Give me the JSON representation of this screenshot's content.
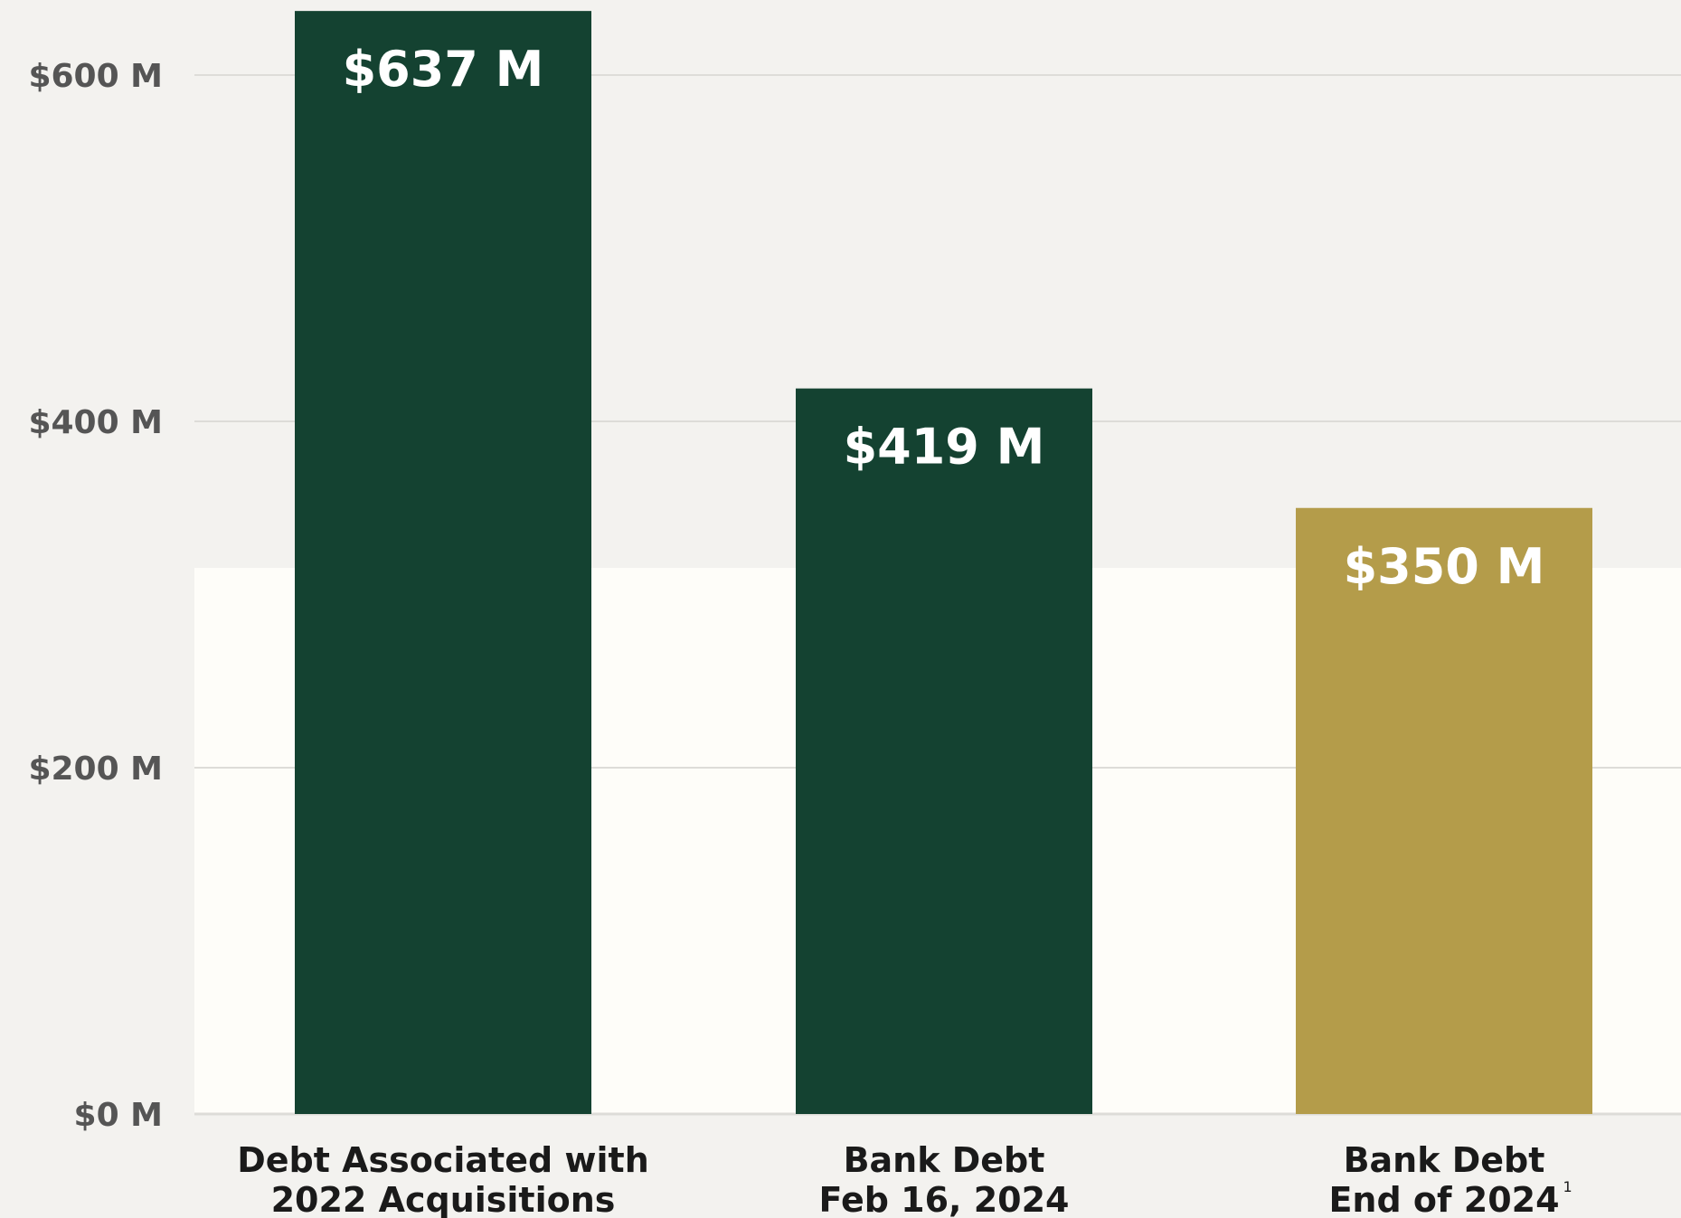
{
  "colors": {
    "background": "#f3f2ef",
    "plot_highlight_band": "#fefdf9",
    "gridline": "#dddcd8",
    "dark_green": "#144231",
    "gold": "#b49c4a",
    "value_label": "#ffffff",
    "axis_label": "#555555",
    "category_label": "#1a1a1a"
  },
  "chart_data": {
    "type": "bar",
    "categories": [
      [
        "Debt Associated with",
        "2022 Acquisitions"
      ],
      [
        "Bank Debt",
        "Feb 16, 2024"
      ],
      [
        "Bank Debt",
        "End of 2024"
      ]
    ],
    "category_footnotes": [
      "",
      "",
      "1"
    ],
    "values": [
      637,
      419,
      350
    ],
    "value_labels": [
      "$637 M",
      "$419 M",
      "$350 M"
    ],
    "bar_colors": [
      "#144231",
      "#144231",
      "#b49c4a"
    ],
    "yticks": [
      0,
      200,
      400,
      600
    ],
    "ytick_labels": [
      "$0 M",
      "$200 M",
      "$400 M",
      "$600 M"
    ],
    "ylim": [
      0,
      600
    ],
    "grid": true,
    "title": "",
    "xlabel": "",
    "ylabel": ""
  }
}
